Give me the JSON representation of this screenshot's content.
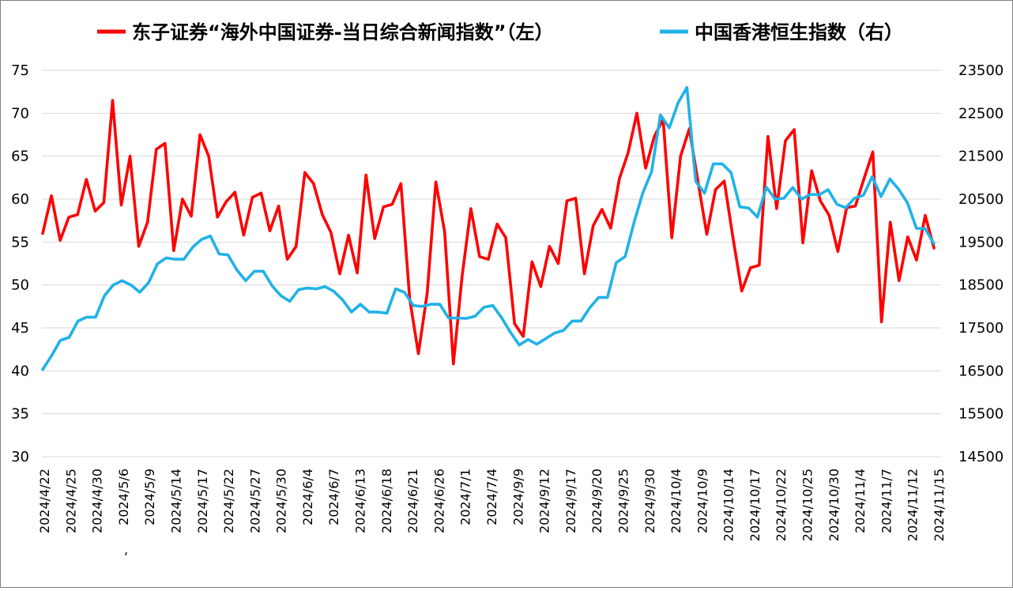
{
  "chart_data": {
    "type": "line",
    "legend_position": "top",
    "grid": true,
    "y_left": {
      "min": 30,
      "max": 75,
      "ticks": [
        30,
        35,
        40,
        45,
        50,
        55,
        60,
        65,
        70,
        75
      ]
    },
    "y_right": {
      "min": 14500,
      "max": 23500,
      "ticks": [
        14500,
        15500,
        16500,
        17500,
        18500,
        19500,
        20500,
        21500,
        22500,
        23500
      ]
    },
    "x_tick_labels": [
      "2024/4/22",
      "2024/4/25",
      "2024/4/30",
      "2024/5/6",
      "2024/5/9",
      "2024/5/14",
      "2024/5/17",
      "2024/5/22",
      "2024/5/27",
      "2024/5/30",
      "2024/6/4",
      "2024/6/7",
      "2024/6/13",
      "2024/6/18",
      "2024/6/21",
      "2024/6/26",
      "2024/7/1",
      "2024/7/4",
      "2024/9/9",
      "2024/9/12",
      "2024/9/17",
      "2024/9/20",
      "2024/9/25",
      "2024/9/30",
      "2024/10/4",
      "2024/10/9",
      "2024/10/14",
      "2024/10/17",
      "2024/10/22",
      "2024/10/25",
      "2024/10/30",
      "2024/11/4",
      "2024/11/7",
      "2024/11/12",
      "2024/11/15"
    ],
    "stray_mark": ",",
    "series": [
      {
        "name": "东子证券“海外中国证券-当日综合新闻指数”（左）",
        "axis": "left",
        "color": "#ff0000",
        "values": [
          56.0,
          60.4,
          55.2,
          57.9,
          58.2,
          62.3,
          58.6,
          59.6,
          71.5,
          59.3,
          65.0,
          54.5,
          57.3,
          65.8,
          66.5,
          54.0,
          60.0,
          58.0,
          67.5,
          65.0,
          57.9,
          59.7,
          60.8,
          55.8,
          60.2,
          60.7,
          56.3,
          59.2,
          53.0,
          54.5,
          63.1,
          61.8,
          58.2,
          56.1,
          51.3,
          55.8,
          51.4,
          62.8,
          55.4,
          59.1,
          59.4,
          61.8,
          48.4,
          42.0,
          49.0,
          62.0,
          56.2,
          40.8,
          51.0,
          58.9,
          53.3,
          53.0,
          57.1,
          55.5,
          45.5,
          44.0,
          52.7,
          49.8,
          54.5,
          52.5,
          59.8,
          60.1,
          51.3,
          56.9,
          58.8,
          56.6,
          62.4,
          65.4,
          70.0,
          63.6,
          67.3,
          69.3,
          55.5,
          65.0,
          68.2,
          62.0,
          55.9,
          61.1,
          62.1,
          55.5,
          49.3,
          52.0,
          52.3,
          67.3,
          58.9,
          66.8,
          68.1,
          54.9,
          63.3,
          59.8,
          58.1,
          53.9,
          59.0,
          59.2,
          62.4,
          65.5,
          45.7,
          57.3,
          50.5,
          55.6,
          52.9,
          58.1,
          54.3
        ]
      },
      {
        "name": "中国香港恒生指数（右）",
        "axis": "right",
        "color": "#1fb2e8",
        "values": [
          16530,
          16850,
          17210,
          17280,
          17660,
          17750,
          17750,
          18250,
          18500,
          18600,
          18500,
          18330,
          18550,
          18990,
          19130,
          19100,
          19100,
          19380,
          19560,
          19640,
          19220,
          19200,
          18850,
          18600,
          18820,
          18820,
          18480,
          18250,
          18120,
          18390,
          18430,
          18410,
          18460,
          18350,
          18150,
          17870,
          18050,
          17870,
          17870,
          17840,
          18410,
          18330,
          18020,
          18000,
          18050,
          18050,
          17730,
          17730,
          17720,
          17770,
          17980,
          18020,
          17740,
          17400,
          17100,
          17230,
          17120,
          17250,
          17380,
          17440,
          17660,
          17660,
          17970,
          18210,
          18210,
          19020,
          19160,
          19950,
          20640,
          21140,
          22460,
          22160,
          22740,
          23100,
          20910,
          20640,
          21320,
          21320,
          21120,
          20320,
          20290,
          20080,
          20780,
          20500,
          20520,
          20770,
          20500,
          20610,
          20600,
          20720,
          20380,
          20300,
          20520,
          20590,
          21020,
          20560,
          20970,
          20730,
          20410,
          19820,
          19810,
          19460
        ]
      }
    ]
  }
}
